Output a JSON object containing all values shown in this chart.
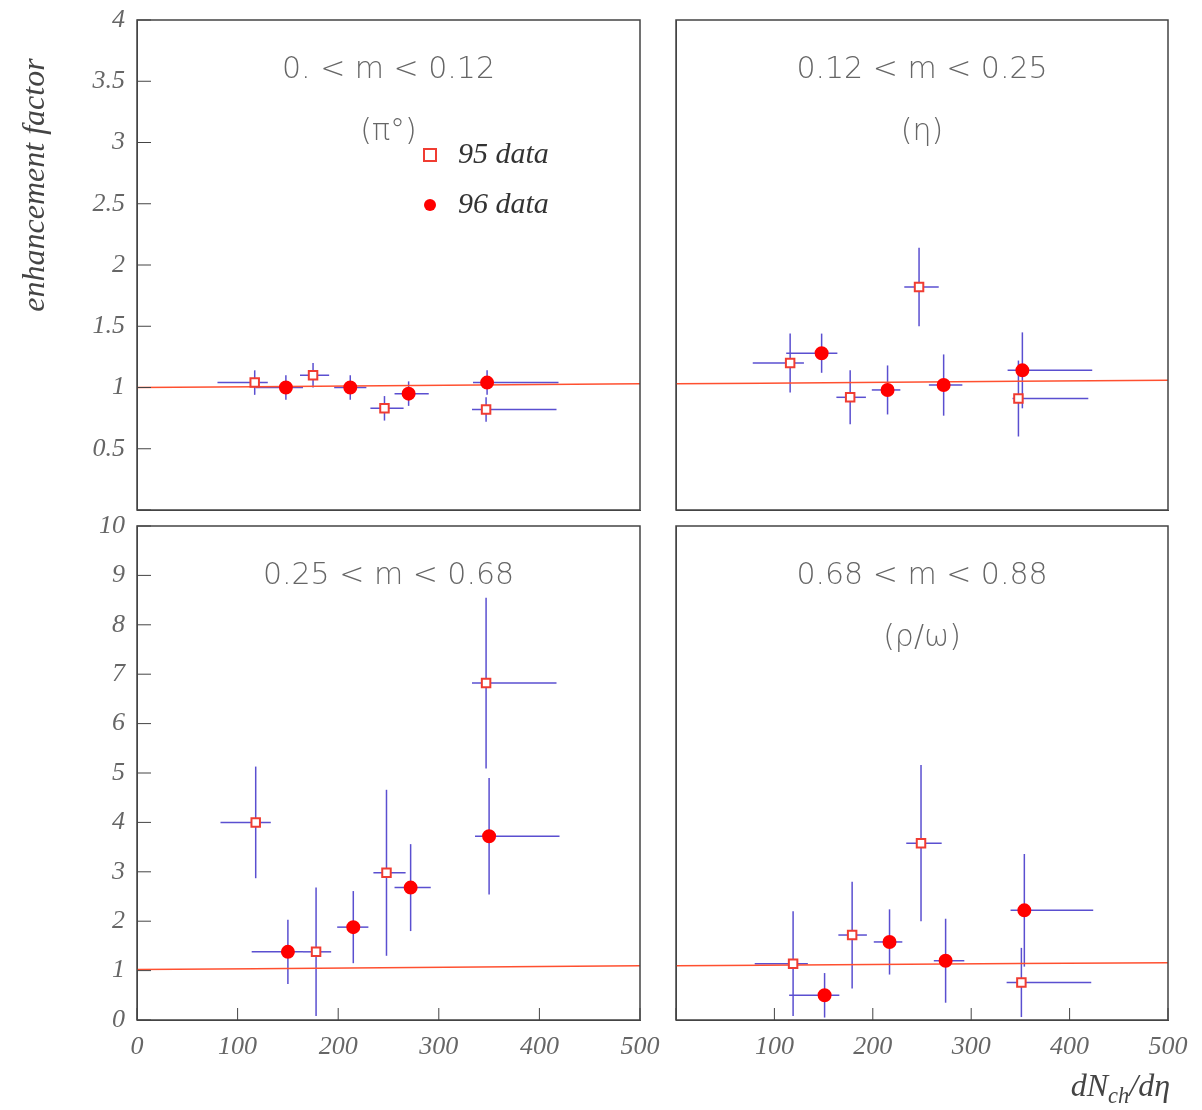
{
  "chart_data": [
    {
      "type": "scatter",
      "ylabel": "enhancement factor",
      "annotations": [
        "0. < m < 0.12",
        "(π°)"
      ],
      "legend": "top right",
      "tick_labels": "y",
      "xlim": [
        0,
        500
      ],
      "ylim": [
        0,
        4
      ],
      "yticks": [
        {
          "value": 0,
          "label": null
        },
        0.5,
        1,
        1.5,
        2,
        2.5,
        3,
        3.5,
        4
      ],
      "grid": false,
      "series": [
        {
          "name": "95 data",
          "type": "scatter",
          "marker": "square",
          "color": "#f03c32",
          "x": [
            117,
            175,
            246,
            347
          ],
          "values": [
            1.04,
            1.1,
            0.83,
            0.82
          ],
          "errors": [
            0.1,
            0.1,
            0.1,
            0.1
          ],
          "xerrors": [
            [
              80,
              130
            ],
            [
              162,
              191
            ],
            [
              232,
              265
            ],
            [
              333,
              417
            ]
          ]
        },
        {
          "name": "96 data",
          "type": "scatter",
          "marker": "circle",
          "color": "#ff0000",
          "x": [
            148,
            212,
            270,
            348
          ],
          "values": [
            1.0,
            1.0,
            0.95,
            1.04
          ],
          "errors": [
            0.1,
            0.1,
            0.1,
            0.1
          ],
          "xerrors": [
            [
              118,
              165
            ],
            [
              196,
              228
            ],
            [
              256,
              290
            ],
            [
              334,
              419
            ]
          ]
        },
        {
          "type": "line",
          "marker": "none",
          "color": "#ff5030",
          "x": [
            0,
            500
          ],
          "values": [
            1.0,
            1.03
          ]
        }
      ]
    },
    {
      "type": "scatter",
      "annotations": [
        "0.12 < m < 0.25",
        "(η)"
      ],
      "tick_labels": false,
      "xlim": [
        0,
        500
      ],
      "ylim": [
        0,
        4
      ],
      "grid": false,
      "series": [
        {
          "type": "scatter",
          "marker": "square",
          "color": "#f03c32",
          "x": [
            116,
            177,
            247,
            348
          ],
          "values": [
            1.2,
            0.92,
            1.82,
            0.91
          ],
          "errors": [
            0.24,
            0.22,
            0.32,
            0.31
          ],
          "xerrors": [
            [
              78,
              130
            ],
            [
              163,
              193
            ],
            [
              232,
              267
            ],
            [
              342,
              419
            ]
          ]
        },
        {
          "type": "scatter",
          "marker": "circle",
          "color": "#ff0000",
          "x": [
            148,
            215,
            272,
            352
          ],
          "values": [
            1.28,
            0.98,
            1.02,
            1.14
          ],
          "errors": [
            0.16,
            0.2,
            0.25,
            0.31
          ],
          "xerrors": [
            [
              112,
              164
            ],
            [
              199,
              228
            ],
            [
              257,
              291
            ],
            [
              337,
              423
            ]
          ]
        },
        {
          "type": "line",
          "marker": "none",
          "color": "#ff5030",
          "x": [
            0,
            500
          ],
          "values": [
            1.03,
            1.06
          ]
        }
      ]
    },
    {
      "type": "scatter",
      "annotations": [
        "0.25 < m < 0.68"
      ],
      "xlim": [
        0,
        500
      ],
      "ylim": [
        0,
        10
      ],
      "xticks": [
        0,
        100,
        200,
        300,
        400,
        500
      ],
      "yticks": [
        0,
        1,
        2,
        3,
        4,
        5,
        6,
        7,
        8,
        9,
        10
      ],
      "grid": false,
      "series": [
        {
          "type": "scatter",
          "marker": "square",
          "color": "#f03c32",
          "x": [
            118,
            178,
            248,
            347
          ],
          "values": [
            4.0,
            1.38,
            2.98,
            6.82
          ],
          "errors": [
            1.13,
            1.3,
            1.68,
            1.73
          ],
          "xerrors": [
            [
              83,
              133
            ],
            [
              165,
              193
            ],
            [
              235,
              267
            ],
            [
              333,
              417
            ]
          ]
        },
        {
          "type": "scatter",
          "marker": "circle",
          "color": "#ff0000",
          "x": [
            150,
            215,
            272,
            350
          ],
          "values": [
            1.38,
            1.88,
            2.68,
            3.72
          ],
          "errors": [
            0.65,
            0.73,
            0.88,
            1.18
          ],
          "xerrors": [
            [
              114,
              165
            ],
            [
              199,
              230
            ],
            [
              256,
              292
            ],
            [
              336,
              420
            ]
          ]
        },
        {
          "type": "line",
          "marker": "none",
          "color": "#ff5030",
          "x": [
            0,
            500
          ],
          "values": [
            1.02,
            1.1
          ]
        }
      ]
    },
    {
      "type": "scatter",
      "xlabel": "dN$_{ch}$/dη",
      "annotations": [
        "0.68 < m < 0.88",
        "(ρ/ω)"
      ],
      "tick_labels": "x",
      "xlim": [
        0,
        500
      ],
      "ylim": [
        0,
        10
      ],
      "xticks": [
        {
          "value": 0,
          "label": null
        },
        100,
        200,
        300,
        400,
        500
      ],
      "grid": false,
      "series": [
        {
          "type": "scatter",
          "marker": "square",
          "color": "#f03c32",
          "x": [
            119,
            179,
            249,
            351
          ],
          "values": [
            1.14,
            1.72,
            3.58,
            0.76
          ],
          "errors": [
            1.06,
            1.08,
            1.58,
            0.7
          ],
          "xerrors": [
            [
              80,
              134
            ],
            [
              165,
              194
            ],
            [
              234,
              270
            ],
            [
              336,
              422
            ]
          ]
        },
        {
          "type": "scatter",
          "marker": "circle",
          "color": "#ff0000",
          "x": [
            151,
            217,
            274,
            354
          ],
          "values": [
            0.5,
            1.58,
            1.2,
            2.22
          ],
          "errors": [
            0.45,
            0.66,
            0.85,
            1.14
          ],
          "xerrors": [
            [
              115,
              166
            ],
            [
              201,
              230
            ],
            [
              262,
              293
            ],
            [
              340,
              424
            ]
          ]
        },
        {
          "type": "line",
          "marker": "none",
          "color": "#ff5030",
          "x": [
            0,
            500
          ],
          "values": [
            1.1,
            1.16
          ]
        }
      ]
    }
  ]
}
